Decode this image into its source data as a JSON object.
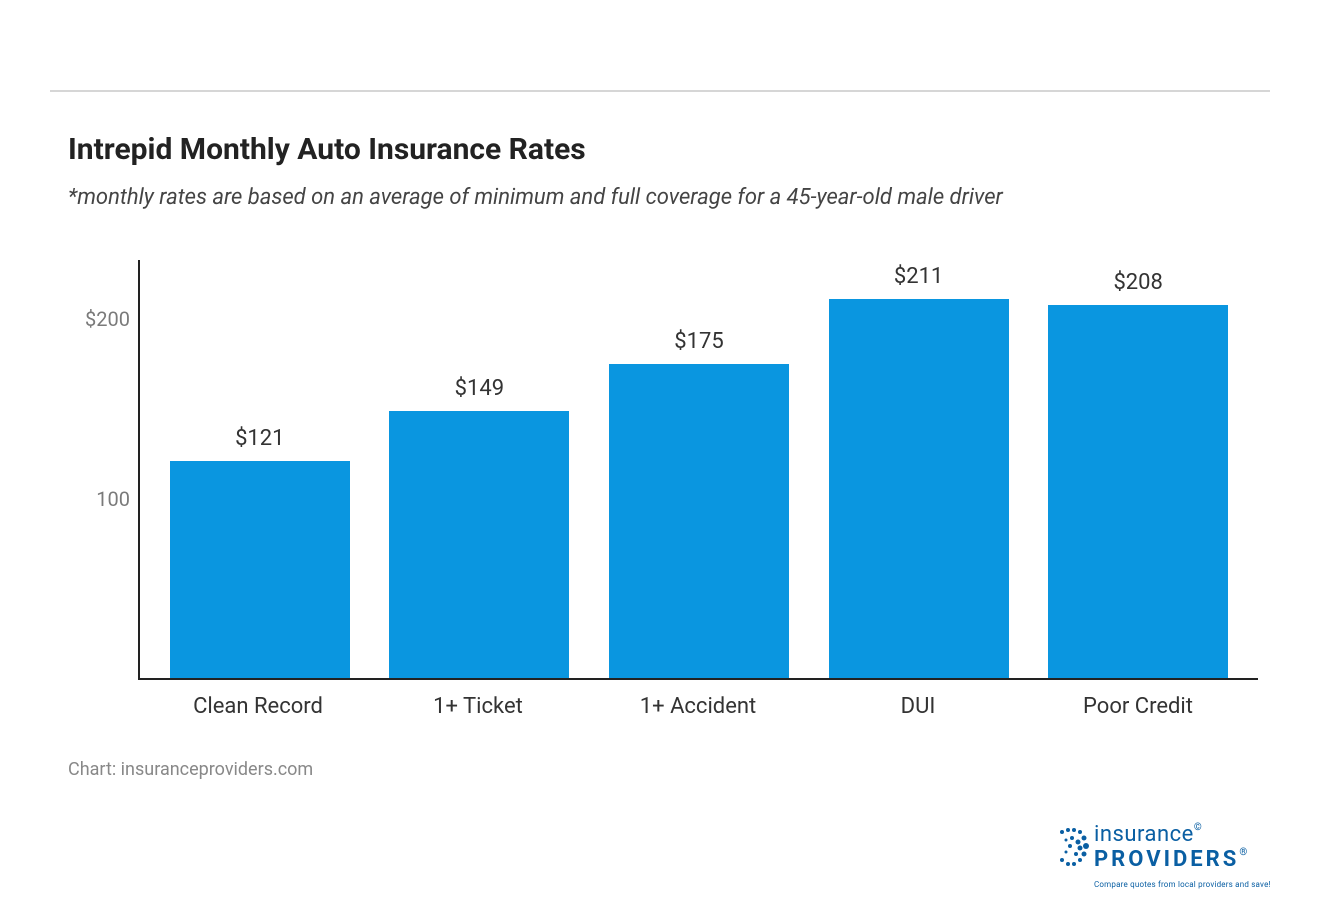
{
  "chart": {
    "type": "bar",
    "title": "Intrepid Monthly Auto Insurance Rates",
    "subtitle": "*monthly rates are based on an average of minimum and full coverage for a 45-year-old male driver",
    "categories": [
      "Clean Record",
      "1+ Ticket",
      "1+ Accident",
      "DUI",
      "Poor Credit"
    ],
    "values": [
      121,
      149,
      175,
      211,
      208
    ],
    "value_labels": [
      "$121",
      "$149",
      "$175",
      "$211",
      "$208"
    ],
    "bar_color": "#0a96e0",
    "yticks": [
      {
        "pos": 100,
        "label": "100"
      },
      {
        "pos": 200,
        "label": "$200"
      }
    ],
    "ylim": [
      0,
      234
    ],
    "axis_color": "#222222",
    "tick_text_color": "#7a7a7a",
    "title_fontsize": 30,
    "subtitle_fontsize": 22,
    "label_fontsize": 22,
    "value_label_fontsize": 22,
    "background_color": "#ffffff",
    "bar_width_pct": 82
  },
  "footer": {
    "credit": "Chart: insuranceproviders.com",
    "logo_text1": "insurance",
    "logo_text2": "PROVIDERS",
    "logo_tagline": "Compare quotes from local providers and save!",
    "logo_color": "#0a5fa3"
  }
}
